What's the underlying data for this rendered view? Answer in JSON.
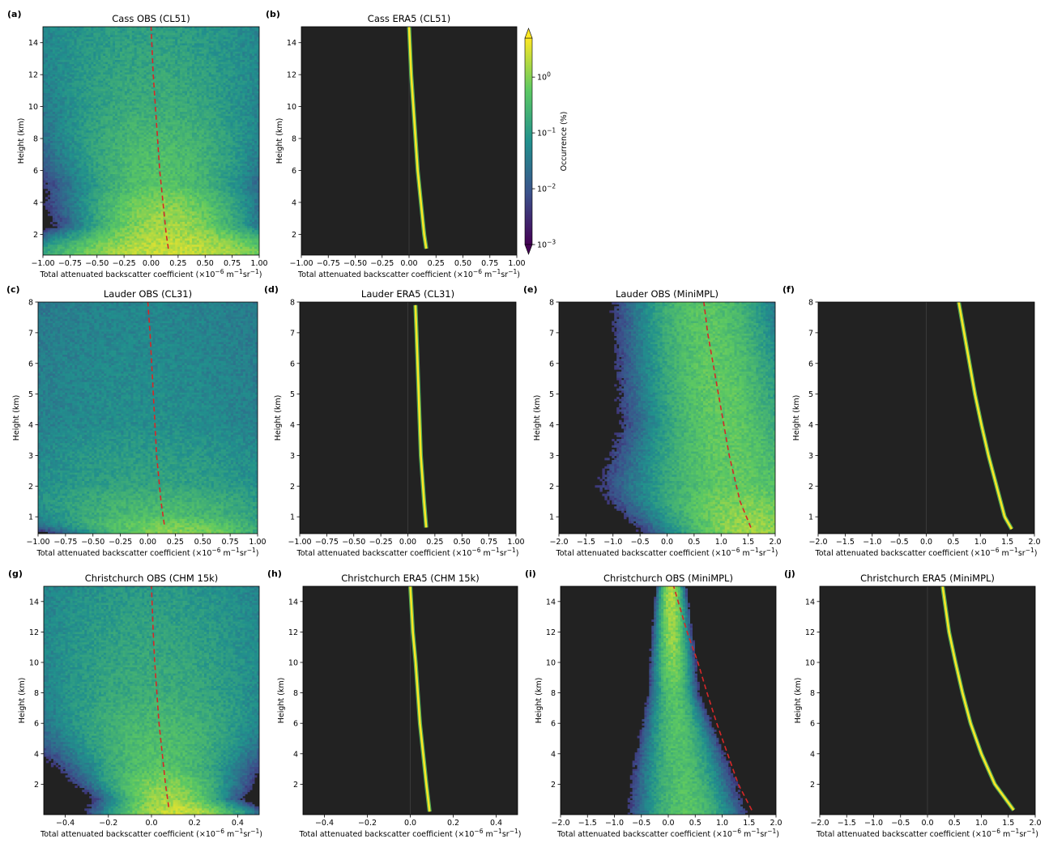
{
  "colors": {
    "background": "#222222",
    "reference_line": "#d62728",
    "zero_line": "#3a3a3a",
    "colormap": [
      "#440154",
      "#3b528b",
      "#21908d",
      "#5dc962",
      "#fde725"
    ]
  },
  "colorbar": {
    "label": "Occurrence (%)",
    "scale": "log",
    "range": [
      0.001,
      5
    ],
    "tick_labels": [
      "10^0",
      "10^-1",
      "10^-2",
      "10^-3"
    ],
    "tick_values": [
      1,
      0.1,
      0.01,
      0.001
    ],
    "extend": "both"
  },
  "chart_data": [
    {
      "id": "a",
      "panel_label": "(a)",
      "type": "heatmap",
      "title": "Cass OBS (CL51)",
      "xlabel": "Total attenuated backscatter coefficient (×10^-6 m^-1sr^-1)",
      "ylabel": "Height (km)",
      "xlim": [
        -1.0,
        1.0
      ],
      "ylim": [
        0.7,
        15
      ],
      "xticks": [
        -1.0,
        -0.75,
        -0.5,
        -0.25,
        0.0,
        0.25,
        0.5,
        0.75,
        1.0
      ],
      "xtick_labels": [
        "−1.00",
        "−0.75",
        "−0.50",
        "−0.25",
        "0.00",
        "0.25",
        "0.50",
        "0.75",
        "1.00"
      ],
      "yticks": [
        2,
        4,
        6,
        8,
        10,
        12,
        14
      ],
      "ytick_labels": [
        "2",
        "4",
        "6",
        "8",
        "10",
        "12",
        "14"
      ],
      "reference_line": {
        "heights": [
          1.1,
          2,
          4,
          6,
          8,
          10,
          12,
          15
        ],
        "values": [
          0.16,
          0.14,
          0.11,
          0.08,
          0.06,
          0.04,
          0.02,
          0.0
        ]
      },
      "distribution": {
        "center": [
          [
            1,
            0.2
          ],
          [
            2.5,
            0.15
          ],
          [
            5,
            0.1
          ],
          [
            10,
            0.05
          ],
          [
            15,
            0.0
          ]
        ],
        "width": [
          [
            1,
            0.5
          ],
          [
            2.5,
            0.3
          ],
          [
            5,
            0.35
          ],
          [
            10,
            0.55
          ],
          [
            15,
            0.75
          ]
        ],
        "peak": [
          [
            1,
            2.5
          ],
          [
            2,
            1.8
          ],
          [
            5,
            0.5
          ],
          [
            10,
            0.2
          ],
          [
            15,
            0.12
          ]
        ]
      }
    },
    {
      "id": "b",
      "panel_label": "(b)",
      "type": "heatmap",
      "title": "Cass ERA5 (CL51)",
      "xlabel": "Total attenuated backscatter coefficient (×10^-6 m^-1sr^-1)",
      "ylabel": "Height (km)",
      "xlim": [
        -1.0,
        1.0
      ],
      "ylim": [
        0.7,
        15
      ],
      "xticks": [
        -1.0,
        -0.75,
        -0.5,
        -0.25,
        0.0,
        0.25,
        0.5,
        0.75,
        1.0
      ],
      "xtick_labels": [
        "−1.00",
        "−0.75",
        "−0.50",
        "−0.25",
        "0.00",
        "0.25",
        "0.50",
        "0.75",
        "1.00"
      ],
      "yticks": [
        2,
        4,
        6,
        8,
        10,
        12,
        14
      ],
      "ytick_labels": [
        "2",
        "4",
        "6",
        "8",
        "10",
        "12",
        "14"
      ],
      "curve": {
        "heights": [
          1.1,
          2,
          4,
          6,
          8,
          10,
          12,
          15
        ],
        "values": [
          0.16,
          0.14,
          0.11,
          0.08,
          0.06,
          0.04,
          0.02,
          0.0
        ]
      }
    },
    {
      "id": "c",
      "panel_label": "(c)",
      "type": "heatmap",
      "title": "Lauder OBS (CL31)",
      "xlabel": "Total attenuated backscatter coefficient (×10^-6 m^-1sr^-1)",
      "ylabel": "Height (km)",
      "xlim": [
        -1.0,
        1.0
      ],
      "ylim": [
        0.45,
        8
      ],
      "xticks": [
        -1.0,
        -0.75,
        -0.5,
        -0.25,
        0.0,
        0.25,
        0.5,
        0.75,
        1.0
      ],
      "xtick_labels": [
        "−1.00",
        "−0.75",
        "−0.50",
        "−0.25",
        "0.00",
        "0.25",
        "0.50",
        "0.75",
        "1.00"
      ],
      "yticks": [
        1,
        2,
        3,
        4,
        5,
        6,
        7,
        8
      ],
      "ytick_labels": [
        "1",
        "2",
        "3",
        "4",
        "5",
        "6",
        "7",
        "8"
      ],
      "reference_line": {
        "heights": [
          0.75,
          1.5,
          3,
          5,
          7,
          8
        ],
        "values": [
          0.15,
          0.12,
          0.08,
          0.05,
          0.02,
          0.0
        ]
      },
      "distribution": {
        "center": [
          [
            0.45,
            0.3
          ],
          [
            1,
            0.15
          ],
          [
            2,
            0.05
          ],
          [
            4,
            0.0
          ],
          [
            8,
            0.0
          ]
        ],
        "width": [
          [
            0.45,
            0.35
          ],
          [
            1,
            0.55
          ],
          [
            2,
            0.8
          ],
          [
            4,
            1.0
          ],
          [
            8,
            1.1
          ]
        ],
        "peak": [
          [
            0.45,
            1.2
          ],
          [
            1,
            0.4
          ],
          [
            2,
            0.15
          ],
          [
            4,
            0.07
          ],
          [
            8,
            0.05
          ]
        ]
      }
    },
    {
      "id": "d",
      "panel_label": "(d)",
      "type": "heatmap",
      "title": "Lauder ERA5 (CL31)",
      "xlabel": "Total attenuated backscatter coefficient (×10^-6 m^-1sr^-1)",
      "ylabel": "Height (km)",
      "xlim": [
        -1.0,
        1.0
      ],
      "ylim": [
        0.45,
        8
      ],
      "xticks": [
        -1.0,
        -0.75,
        -0.5,
        -0.25,
        0.0,
        0.25,
        0.5,
        0.75,
        1.0
      ],
      "xtick_labels": [
        "−1.00",
        "−0.75",
        "−0.50",
        "−0.25",
        "0.00",
        "0.25",
        "0.50",
        "0.75",
        "1.00"
      ],
      "yticks": [
        1,
        2,
        3,
        4,
        5,
        6,
        7,
        8
      ],
      "ytick_labels": [
        "1",
        "2",
        "3",
        "4",
        "5",
        "6",
        "7",
        "8"
      ],
      "curve": {
        "heights": [
          0.65,
          1.5,
          3,
          5,
          7,
          7.9
        ],
        "values": [
          0.17,
          0.15,
          0.12,
          0.1,
          0.08,
          0.07
        ]
      }
    },
    {
      "id": "e",
      "panel_label": "(e)",
      "type": "heatmap",
      "title": "Lauder OBS (MiniMPL)",
      "xlabel": "Total attenuated backscatter coefficient (×10^-6 m^-1sr^-1)",
      "ylabel": "Height (km)",
      "xlim": [
        -2.0,
        2.0
      ],
      "ylim": [
        0.45,
        8
      ],
      "xticks": [
        -2.0,
        -1.5,
        -1.0,
        -0.5,
        0.0,
        0.5,
        1.0,
        1.5,
        2.0
      ],
      "xtick_labels": [
        "−2.0",
        "−1.5",
        "−1.0",
        "−0.5",
        "0.0",
        "0.5",
        "1.0",
        "1.5",
        "2.0"
      ],
      "yticks": [
        1,
        2,
        3,
        4,
        5,
        6,
        7,
        8
      ],
      "ytick_labels": [
        "1",
        "2",
        "3",
        "4",
        "5",
        "6",
        "7",
        "8"
      ],
      "reference_line": {
        "heights": [
          0.65,
          1.5,
          3,
          5,
          7,
          8
        ],
        "values": [
          1.55,
          1.35,
          1.15,
          0.95,
          0.75,
          0.68
        ]
      },
      "distribution": {
        "center": [
          [
            0.5,
            1.6
          ],
          [
            1.5,
            1.35
          ],
          [
            3,
            1.15
          ],
          [
            5,
            0.95
          ],
          [
            8,
            0.7
          ]
        ],
        "width": [
          [
            0.5,
            0.6
          ],
          [
            2,
            0.8
          ],
          [
            4,
            0.6
          ],
          [
            8,
            0.55
          ]
        ],
        "peak": [
          [
            0.5,
            1.5
          ],
          [
            2,
            0.6
          ],
          [
            5,
            0.6
          ],
          [
            8,
            0.5
          ]
        ]
      }
    },
    {
      "id": "f",
      "panel_label": "(f)",
      "type": "heatmap",
      "title": "",
      "xlabel": "Total attenuated backscatter coefficient (×10^-6 m^-1sr^-1)",
      "ylabel": "Height (km)",
      "xlim": [
        -2.0,
        2.0
      ],
      "ylim": [
        0.45,
        8
      ],
      "xticks": [
        -2.0,
        -1.5,
        -1.0,
        -0.5,
        0.0,
        0.5,
        1.0,
        1.5,
        2.0
      ],
      "xtick_labels": [
        "−2.0",
        "−1.5",
        "−1.0",
        "−0.5",
        "0.0",
        "0.5",
        "1.0",
        "1.5",
        "2.0"
      ],
      "yticks": [
        1,
        2,
        3,
        4,
        5,
        6,
        7,
        8
      ],
      "ytick_labels": [
        "1",
        "2",
        "3",
        "4",
        "5",
        "6",
        "7",
        "8"
      ],
      "curve": {
        "heights": [
          0.6,
          1,
          2,
          3,
          4,
          5,
          6,
          7,
          8
        ],
        "values": [
          1.58,
          1.45,
          1.3,
          1.15,
          1.02,
          0.9,
          0.8,
          0.7,
          0.6
        ]
      }
    },
    {
      "id": "g",
      "panel_label": "(g)",
      "type": "heatmap",
      "title": "Christchurch OBS (CHM 15k)",
      "xlabel": "Total attenuated backscatter coefficient (×10^-6 m^-1sr^-1)",
      "ylabel": "Height (km)",
      "xlim": [
        -0.5,
        0.5
      ],
      "ylim": [
        0,
        15
      ],
      "xticks": [
        -0.4,
        -0.2,
        0.0,
        0.2,
        0.4
      ],
      "xtick_labels": [
        "−0.4",
        "−0.2",
        "0.0",
        "0.2",
        "0.4"
      ],
      "yticks": [
        2,
        4,
        6,
        8,
        10,
        12,
        14
      ],
      "ytick_labels": [
        "2",
        "4",
        "6",
        "8",
        "10",
        "12",
        "14"
      ],
      "reference_line": {
        "heights": [
          0.5,
          2,
          4,
          6,
          8,
          10,
          12,
          15
        ],
        "values": [
          0.08,
          0.065,
          0.05,
          0.035,
          0.025,
          0.015,
          0.008,
          0.0
        ]
      },
      "distribution": {
        "center": [
          [
            0.2,
            0.12
          ],
          [
            1,
            0.08
          ],
          [
            3,
            0.04
          ],
          [
            8,
            0.02
          ],
          [
            15,
            0.0
          ]
        ],
        "width": [
          [
            0.2,
            0.12
          ],
          [
            1,
            0.1
          ],
          [
            3,
            0.15
          ],
          [
            8,
            0.3
          ],
          [
            15,
            0.4
          ]
        ],
        "peak": [
          [
            0.2,
            2.5
          ],
          [
            1,
            1.5
          ],
          [
            3,
            0.5
          ],
          [
            8,
            0.2
          ],
          [
            15,
            0.1
          ]
        ]
      }
    },
    {
      "id": "h",
      "panel_label": "(h)",
      "type": "heatmap",
      "title": "Christchurch ERA5 (CHM 15k)",
      "xlabel": "Total attenuated backscatter coefficient (×10^-6 m^-1sr^-1)",
      "ylabel": "Height (km)",
      "xlim": [
        -0.5,
        0.5
      ],
      "ylim": [
        0,
        15
      ],
      "xticks": [
        -0.4,
        -0.2,
        0.0,
        0.2,
        0.4
      ],
      "xtick_labels": [
        "−0.4",
        "−0.2",
        "0.0",
        "0.2",
        "0.4"
      ],
      "yticks": [
        2,
        4,
        6,
        8,
        10,
        12,
        14
      ],
      "ytick_labels": [
        "2",
        "4",
        "6",
        "8",
        "10",
        "12",
        "14"
      ],
      "curve": {
        "heights": [
          0.2,
          2,
          4,
          6,
          8,
          10,
          12,
          15
        ],
        "values": [
          0.09,
          0.075,
          0.06,
          0.045,
          0.035,
          0.025,
          0.012,
          0.0
        ]
      }
    },
    {
      "id": "i",
      "panel_label": "(i)",
      "type": "heatmap",
      "title": "Christchurch OBS (MiniMPL)",
      "xlabel": "Total attenuated backscatter coefficient (×10^-6 m^-1sr^-1)",
      "ylabel": "Height (km)",
      "xlim": [
        -2.0,
        2.0
      ],
      "ylim": [
        0,
        15
      ],
      "xticks": [
        -2.0,
        -1.5,
        -1.0,
        -0.5,
        0.0,
        0.5,
        1.0,
        1.5,
        2.0
      ],
      "xtick_labels": [
        "−2.0",
        "−1.5",
        "−1.0",
        "−0.5",
        "0.0",
        "0.5",
        "1.0",
        "1.5",
        "2.0"
      ],
      "yticks": [
        2,
        4,
        6,
        8,
        10,
        12,
        14
      ],
      "ytick_labels": [
        "2",
        "4",
        "6",
        "8",
        "10",
        "12",
        "14"
      ],
      "reference_line": {
        "heights": [
          0.3,
          2,
          4,
          6,
          8,
          10,
          12,
          15
        ],
        "values": [
          1.55,
          1.3,
          1.1,
          0.9,
          0.72,
          0.55,
          0.35,
          0.1
        ]
      },
      "distribution": {
        "center": [
          [
            0.2,
            0.35
          ],
          [
            3,
            0.25
          ],
          [
            8,
            0.1
          ],
          [
            15,
            0.05
          ]
        ],
        "width": [
          [
            0.2,
            0.35
          ],
          [
            3,
            0.3
          ],
          [
            8,
            0.15
          ],
          [
            15,
            0.08
          ]
        ],
        "peak": [
          [
            0.2,
            0.5
          ],
          [
            3,
            0.4
          ],
          [
            8,
            0.5
          ],
          [
            15,
            2.0
          ]
        ]
      }
    },
    {
      "id": "j",
      "panel_label": "(j)",
      "type": "heatmap",
      "title": "Christchurch ERA5 (MiniMPL)",
      "xlabel": "Total attenuated backscatter coefficient (×10^-6 m^-1sr^-1)",
      "ylabel": "Height (km)",
      "xlim": [
        -2.0,
        2.0
      ],
      "ylim": [
        0,
        15
      ],
      "xticks": [
        -2.0,
        -1.5,
        -1.0,
        -0.5,
        0.0,
        0.5,
        1.0,
        1.5,
        2.0
      ],
      "xtick_labels": [
        "−2.0",
        "−1.5",
        "−1.0",
        "−0.5",
        "0.0",
        "0.5",
        "1.0",
        "1.5",
        "2.0"
      ],
      "yticks": [
        2,
        4,
        6,
        8,
        10,
        12,
        14
      ],
      "ytick_labels": [
        "2",
        "4",
        "6",
        "8",
        "10",
        "12",
        "14"
      ],
      "curve": {
        "heights": [
          0.3,
          2,
          4,
          6,
          8,
          10,
          12,
          15
        ],
        "values": [
          1.6,
          1.25,
          1.0,
          0.8,
          0.65,
          0.52,
          0.4,
          0.28
        ]
      }
    }
  ]
}
